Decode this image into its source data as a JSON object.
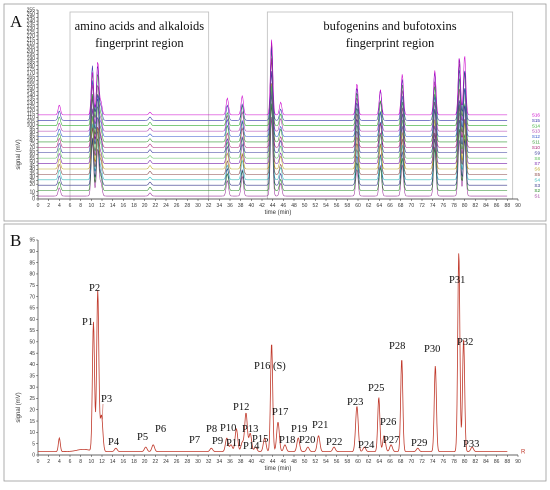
{
  "chart_data": [
    {
      "panel": "A",
      "type": "line",
      "regions": [
        {
          "line1": "amino acids and alkaloids",
          "line2": "fingerprint region",
          "xrange": [
            6,
            32
          ]
        },
        {
          "line1": "bufogenins and bufotoxins",
          "line2": "fingerprint region",
          "xrange": [
            43,
            89
          ]
        }
      ],
      "xlabel": "time (min)",
      "ylabel": "signal (mV)",
      "xlim": [
        0,
        90
      ],
      "ylim": [
        0,
        255
      ],
      "xticks": [
        0,
        2,
        4,
        6,
        8,
        10,
        12,
        14,
        16,
        18,
        20,
        22,
        24,
        26,
        28,
        30,
        32,
        34,
        36,
        38,
        40,
        42,
        44,
        46,
        48,
        50,
        52,
        54,
        56,
        58,
        60,
        62,
        64,
        66,
        68,
        70,
        72,
        74,
        76,
        78,
        80,
        82,
        84,
        86,
        88,
        90
      ],
      "yticks": [
        0,
        5,
        10,
        20,
        25,
        30,
        35,
        40,
        45,
        50,
        55,
        60,
        65,
        70,
        75,
        80,
        85,
        90,
        95,
        100,
        105,
        110,
        115,
        120,
        125,
        130,
        135,
        140,
        145,
        150,
        155,
        160,
        165,
        170,
        175,
        180,
        185,
        190,
        195,
        200,
        205,
        210,
        215,
        220,
        225,
        230,
        235,
        240,
        245,
        250,
        255
      ],
      "series": [
        {
          "name": "S16",
          "color": "#cc00cc"
        },
        {
          "name": "S15",
          "color": "#3333aa"
        },
        {
          "name": "S14",
          "color": "#33aa33"
        },
        {
          "name": "S13",
          "color": "#aa33aa"
        },
        {
          "name": "S12",
          "color": "#3355cc"
        },
        {
          "name": "S11",
          "color": "#339933"
        },
        {
          "name": "S10",
          "color": "#aa2277"
        },
        {
          "name": "S9",
          "color": "#333399"
        },
        {
          "name": "S8",
          "color": "#55bb55"
        },
        {
          "name": "S7",
          "color": "#7722aa"
        },
        {
          "name": "S6",
          "color": "#bbaa22"
        },
        {
          "name": "S5",
          "color": "#884444"
        },
        {
          "name": "S4",
          "color": "#33bbbb"
        },
        {
          "name": "S3",
          "color": "#333388"
        },
        {
          "name": "S2",
          "color": "#228822"
        },
        {
          "name": "S1",
          "color": "#993399"
        }
      ],
      "peaks": [
        {
          "rt": 4,
          "h": 12
        },
        {
          "rt": 10.2,
          "h": 66
        },
        {
          "rt": 11.2,
          "h": 64
        },
        {
          "rt": 11.8,
          "h": 16
        },
        {
          "rt": 21,
          "h": 4
        },
        {
          "rt": 35.5,
          "h": 20
        },
        {
          "rt": 38.3,
          "h": 24
        },
        {
          "rt": 43.8,
          "h": 110
        },
        {
          "rt": 45.5,
          "h": 15
        },
        {
          "rt": 59.8,
          "h": 40
        },
        {
          "rt": 64.2,
          "h": 36
        },
        {
          "rt": 68.3,
          "h": 48
        },
        {
          "rt": 74.4,
          "h": 58
        },
        {
          "rt": 79,
          "h": 80
        },
        {
          "rt": 80,
          "h": 70
        }
      ]
    },
    {
      "panel": "B",
      "type": "line",
      "xlabel": "time (min)",
      "ylabel": "signal (mV)",
      "xlim": [
        0,
        90
      ],
      "ylim": [
        0,
        95
      ],
      "xticks": [
        0,
        2,
        4,
        6,
        8,
        10,
        12,
        14,
        16,
        18,
        20,
        22,
        24,
        26,
        28,
        30,
        32,
        34,
        36,
        38,
        40,
        42,
        44,
        46,
        48,
        50,
        52,
        54,
        56,
        58,
        60,
        62,
        64,
        66,
        68,
        70,
        72,
        74,
        76,
        78,
        80,
        82,
        84,
        86,
        88,
        90
      ],
      "yticks": [
        0,
        5,
        10,
        15,
        20,
        25,
        30,
        35,
        40,
        45,
        50,
        55,
        60,
        65,
        70,
        75,
        80,
        85,
        90,
        95
      ],
      "end_label": "R",
      "line_color": "#c0392b",
      "peaks": [
        {
          "label": "P1",
          "rt": 10.4,
          "h": 57
        },
        {
          "label": "P2",
          "rt": 11.2,
          "h": 71
        },
        {
          "label": "P3",
          "rt": 11.9,
          "h": 16
        },
        {
          "label": "P4",
          "rt": 14.6,
          "h": 1.5
        },
        {
          "label": "P5",
          "rt": 20.2,
          "h": 2
        },
        {
          "label": "P6",
          "rt": 21.6,
          "h": 3
        },
        {
          "label": "P7",
          "rt": 32.5,
          "h": 1.5
        },
        {
          "label": "P8",
          "rt": 35.4,
          "h": 6
        },
        {
          "label": "P9",
          "rt": 36.2,
          "h": 3
        },
        {
          "label": "P10",
          "rt": 37.2,
          "h": 10
        },
        {
          "label": "P11",
          "rt": 38.3,
          "h": 4
        },
        {
          "label": "P12",
          "rt": 39,
          "h": 17
        },
        {
          "label": "P13",
          "rt": 39.8,
          "h": 8
        },
        {
          "label": "P14",
          "rt": 40.8,
          "h": 2
        },
        {
          "label": "P15",
          "rt": 42.5,
          "h": 6
        },
        {
          "label": "P16 (S)",
          "rt": 43.8,
          "h": 48
        },
        {
          "label": "P17",
          "rt": 45,
          "h": 13
        },
        {
          "label": "P18",
          "rt": 46.3,
          "h": 3
        },
        {
          "label": "P19",
          "rt": 48.8,
          "h": 6
        },
        {
          "label": "P20",
          "rt": 50.6,
          "h": 2
        },
        {
          "label": "P21",
          "rt": 52.6,
          "h": 7
        },
        {
          "label": "P22",
          "rt": 55.5,
          "h": 2
        },
        {
          "label": "P23",
          "rt": 59.8,
          "h": 20
        },
        {
          "label": "P24",
          "rt": 61.2,
          "h": 2
        },
        {
          "label": "P25",
          "rt": 63.9,
          "h": 24
        },
        {
          "label": "P26",
          "rt": 64.9,
          "h": 7
        },
        {
          "label": "P27",
          "rt": 66.2,
          "h": 3
        },
        {
          "label": "P28",
          "rt": 68.2,
          "h": 41
        },
        {
          "label": "P29",
          "rt": 71.2,
          "h": 1.5
        },
        {
          "label": "P30",
          "rt": 74.5,
          "h": 38
        },
        {
          "label": "P31",
          "rt": 78.9,
          "h": 88
        },
        {
          "label": "P32",
          "rt": 79.8,
          "h": 50
        },
        {
          "label": "P33",
          "rt": 81.4,
          "h": 2
        }
      ]
    }
  ]
}
